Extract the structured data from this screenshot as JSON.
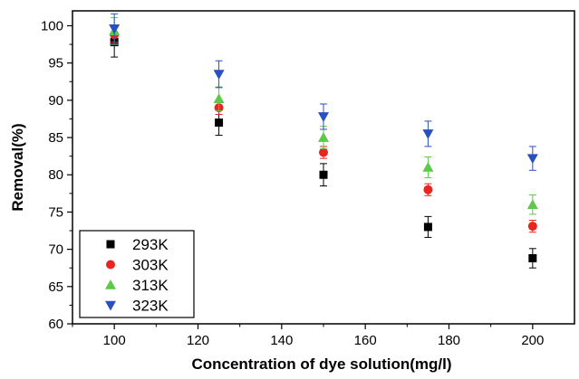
{
  "chart_data": {
    "type": "scatter",
    "title": "",
    "xlabel": "Concentration of dye solution(mg/l)",
    "ylabel": "Removal(%)",
    "xlim": [
      90,
      210
    ],
    "ylim": [
      60,
      102
    ],
    "x_ticks": [
      100,
      120,
      140,
      160,
      180,
      200
    ],
    "y_ticks": [
      60,
      65,
      70,
      75,
      80,
      85,
      90,
      95,
      100
    ],
    "x_tick_labels": [
      "100",
      "120",
      "140",
      "160",
      "180",
      "200"
    ],
    "y_tick_labels": [
      "60",
      "65",
      "70",
      "75",
      "80",
      "85",
      "90",
      "95",
      "100"
    ],
    "grid": false,
    "legend_position": "bottom-left",
    "x": [
      100,
      125,
      150,
      175,
      200
    ],
    "series": [
      {
        "name": "293K",
        "marker": "square",
        "color": "#000000",
        "errcolor": "#000000",
        "values": [
          97.8,
          87.0,
          80.0,
          73.0,
          68.8
        ],
        "errors": [
          2.0,
          1.7,
          1.5,
          1.4,
          1.3
        ]
      },
      {
        "name": "303K",
        "marker": "circle",
        "color": "#e8251f",
        "errcolor": "#e8251f",
        "values": [
          98.8,
          89.0,
          83.0,
          78.0,
          73.1
        ],
        "errors": [
          1.0,
          0.9,
          0.8,
          0.8,
          0.8
        ]
      },
      {
        "name": "313K",
        "marker": "triangle-up",
        "color": "#5cc94a",
        "errcolor": "#5cc94a",
        "values": [
          99.3,
          90.2,
          85.0,
          81.0,
          76.0
        ],
        "errors": [
          1.8,
          1.6,
          1.5,
          1.4,
          1.3
        ]
      },
      {
        "name": "323K",
        "marker": "triangle-down",
        "color": "#2a4fbe",
        "errcolor": "#2a4fbe",
        "values": [
          99.6,
          93.5,
          87.8,
          85.5,
          82.2
        ],
        "errors": [
          2.0,
          1.8,
          1.7,
          1.7,
          1.6
        ]
      }
    ]
  }
}
